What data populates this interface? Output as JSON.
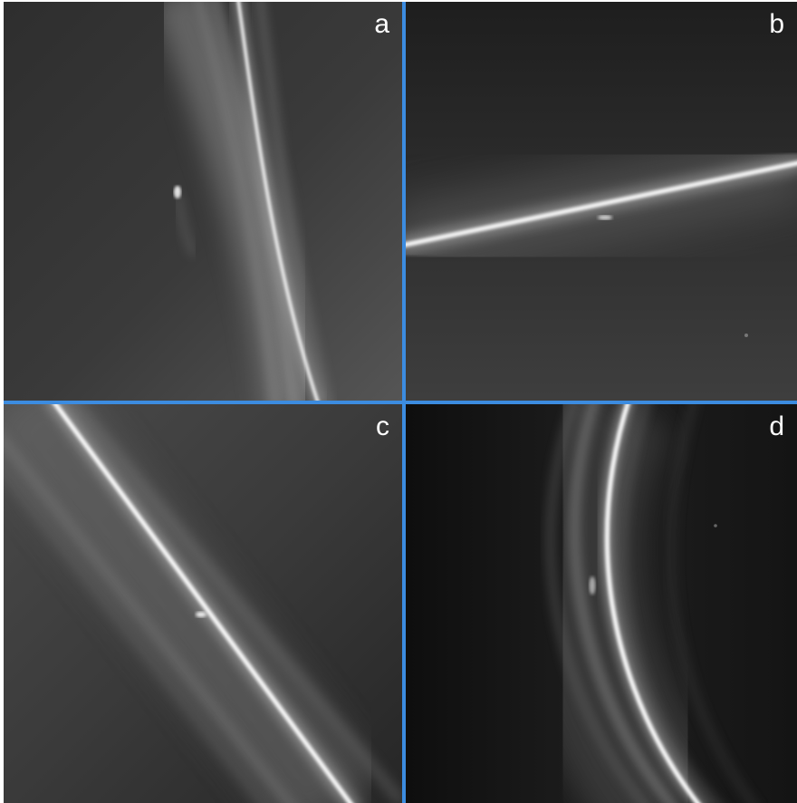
{
  "panels": [
    {
      "id": "a",
      "label": "a"
    },
    {
      "id": "b",
      "label": "b"
    },
    {
      "id": "c",
      "label": "c"
    },
    {
      "id": "d",
      "label": "d"
    }
  ],
  "colors": {
    "divider": "#3c8ce0",
    "label": "#ffffff"
  }
}
